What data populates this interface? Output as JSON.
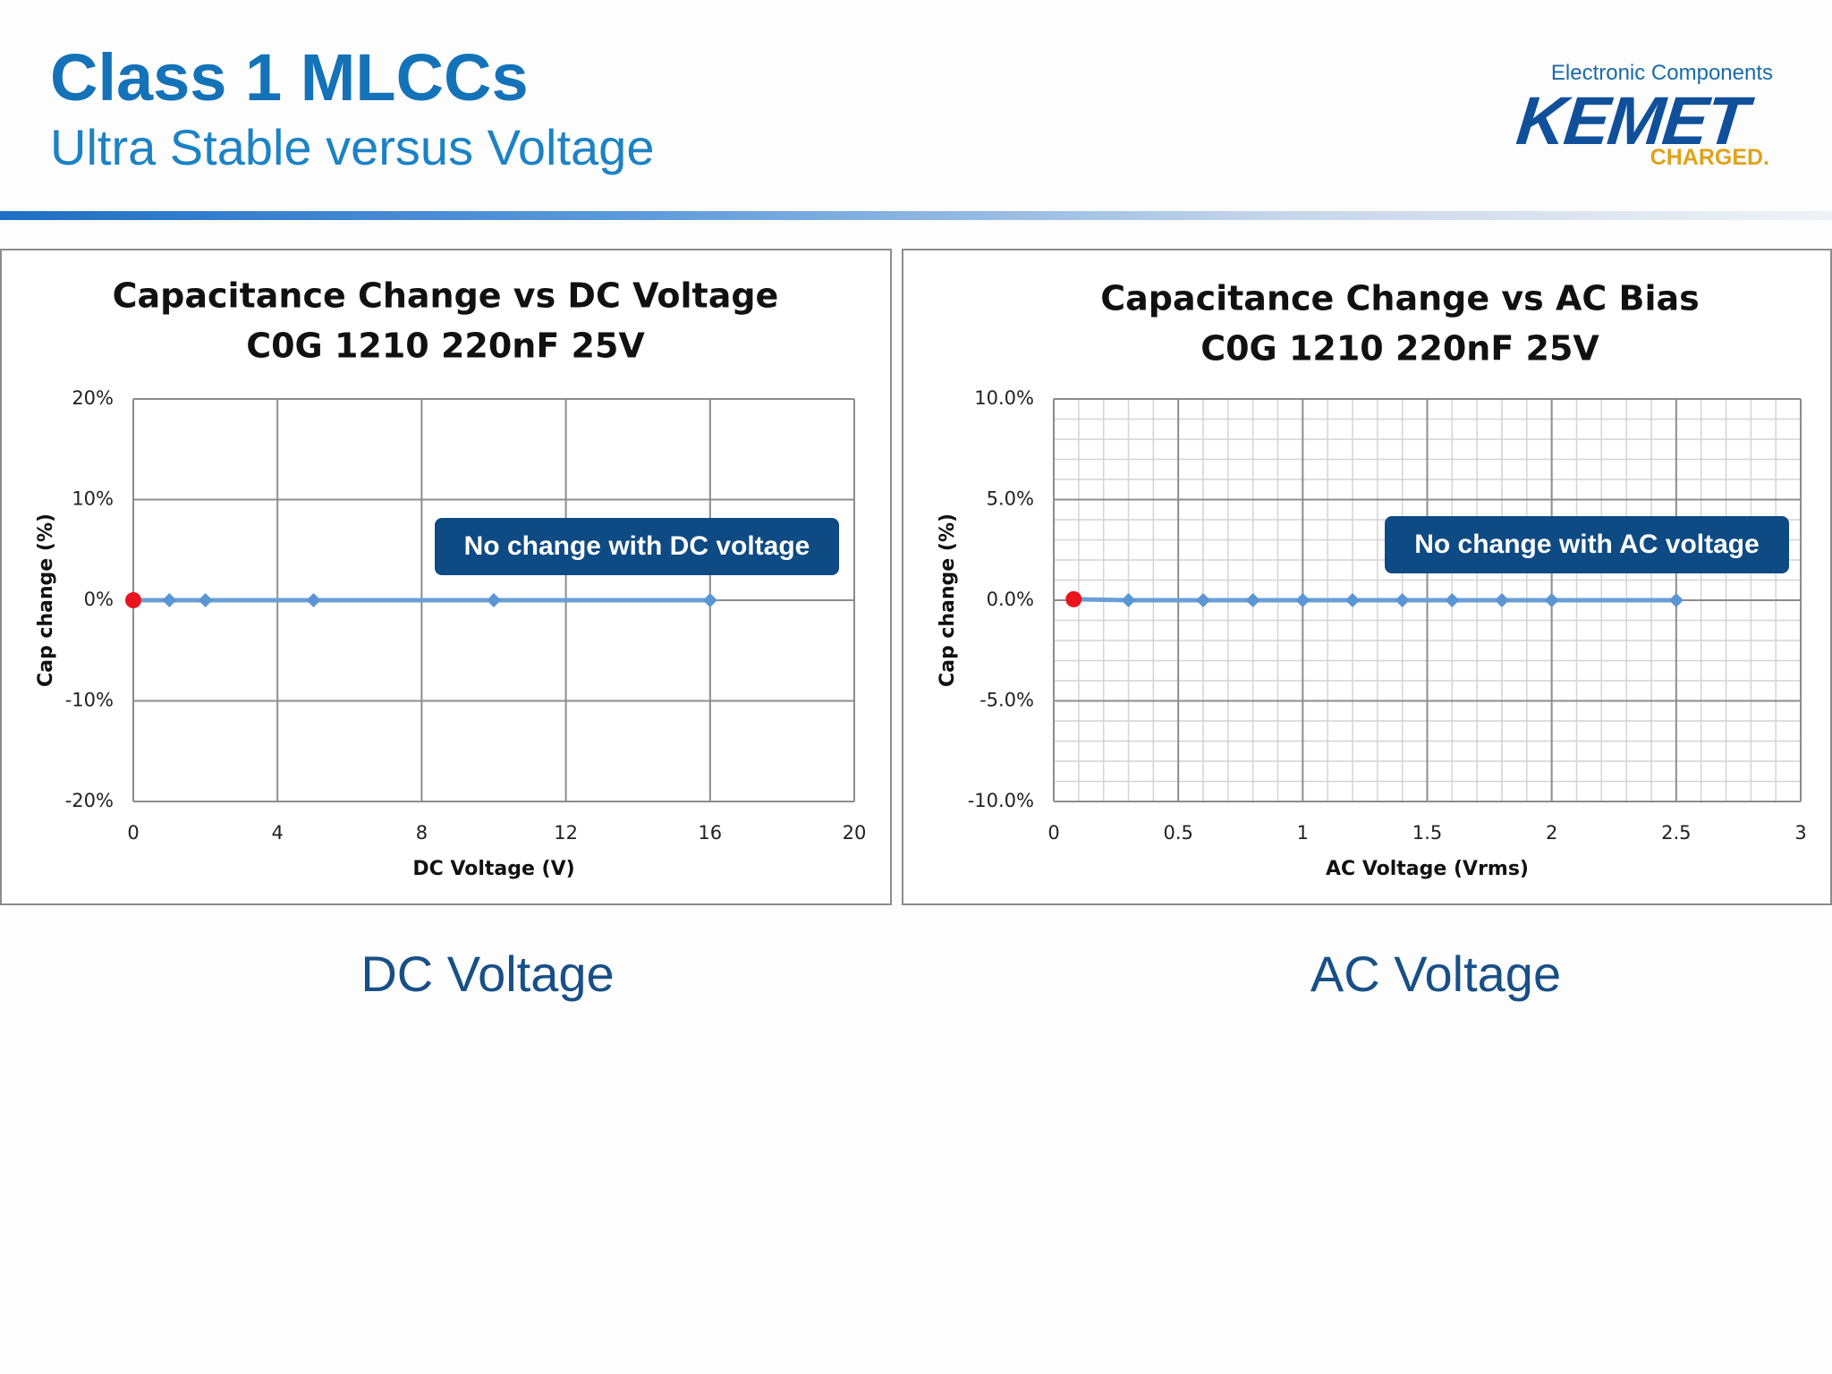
{
  "header": {
    "title": "Class 1 MLCCs",
    "subtitle": "Ultra Stable versus Voltage"
  },
  "logo": {
    "top": "Electronic Components",
    "main": "KEMET",
    "sub": "CHARGED."
  },
  "captions": {
    "left": "DC Voltage",
    "right": "AC Voltage"
  },
  "colors": {
    "series": "#6a9fd6",
    "marker": "#5b95d3",
    "first_point": "#e8141e",
    "callout": "#0e4a83",
    "grid": "#8c8c8c",
    "minor_grid": "#d4d4d4"
  },
  "chart_data": [
    {
      "type": "line",
      "title": "Capacitance Change vs DC Voltage",
      "subtitle": "C0G 1210 220nF 25V",
      "xlabel": "DC Voltage (V)",
      "ylabel": "Cap change (%)",
      "xlim": [
        0,
        20
      ],
      "ylim": [
        -20,
        20
      ],
      "x_ticks": [
        0,
        4,
        8,
        12,
        16,
        20
      ],
      "y_ticks": [
        20,
        10,
        0,
        -10,
        -20
      ],
      "y_tick_labels": [
        "20%",
        "10%",
        "0%",
        "-10%",
        "-20%"
      ],
      "x_tick_labels": [
        "0",
        "4",
        "8",
        "12",
        "16",
        "20"
      ],
      "grid": "major",
      "annotation": "No change with DC voltage",
      "series": [
        {
          "x": [
            0,
            1,
            2,
            5,
            10,
            16
          ],
          "values": [
            0,
            0,
            0,
            0,
            0,
            0
          ]
        }
      ]
    },
    {
      "type": "line",
      "title": "Capacitance Change vs AC Bias",
      "subtitle": "C0G 1210 220nF 25V",
      "xlabel": "AC Voltage (Vrms)",
      "ylabel": "Cap change (%)",
      "xlim": [
        0,
        3
      ],
      "ylim": [
        -10,
        10
      ],
      "x_ticks": [
        0,
        0.5,
        1,
        1.5,
        2,
        2.5,
        3
      ],
      "y_ticks": [
        10,
        5,
        0,
        -5,
        -10
      ],
      "y_tick_labels": [
        "10.0%",
        "5.0%",
        "0.0%",
        "-5.0%",
        "-10.0%"
      ],
      "x_tick_labels": [
        "0",
        "0.5",
        "1",
        "1.5",
        "2",
        "2.5",
        "3"
      ],
      "grid": "major+minor",
      "annotation": "No change with AC voltage",
      "series": [
        {
          "x": [
            0.08,
            0.3,
            0.6,
            0.8,
            1.0,
            1.2,
            1.4,
            1.6,
            1.8,
            2.0,
            2.5
          ],
          "values": [
            0.05,
            0,
            0,
            0,
            0,
            0,
            0,
            0,
            0,
            0,
            0
          ]
        }
      ]
    }
  ]
}
